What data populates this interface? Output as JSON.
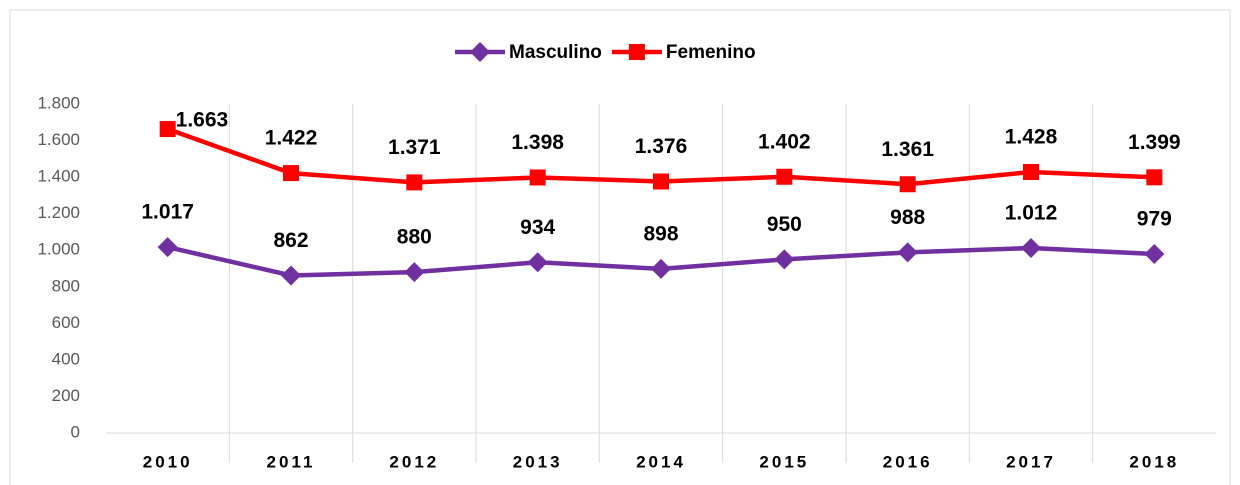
{
  "chart_data": {
    "type": "line",
    "categories": [
      "2010",
      "2011",
      "2012",
      "2013",
      "2014",
      "2015",
      "2016",
      "2017",
      "2018"
    ],
    "series": [
      {
        "name": "Masculino",
        "color": "#7030a0",
        "marker": "diamond",
        "values": [
          1017,
          862,
          880,
          934,
          898,
          950,
          988,
          1012,
          979
        ],
        "value_labels": [
          "1.017",
          "862",
          "880",
          "934",
          "898",
          "950",
          "988",
          "1.012",
          "979"
        ]
      },
      {
        "name": "Femenino",
        "color": "#ff0000",
        "marker": "square",
        "values": [
          1663,
          1422,
          1371,
          1398,
          1376,
          1402,
          1361,
          1428,
          1399
        ],
        "value_labels": [
          "1.663",
          "1.422",
          "1.371",
          "1.398",
          "1.376",
          "1.402",
          "1.361",
          "1.428",
          "1.399"
        ]
      }
    ],
    "ylim": [
      0,
      1800
    ],
    "yticks": [
      0,
      200,
      400,
      600,
      800,
      {
        "value": 1000,
        "label": "1.000"
      },
      {
        "value": 1200,
        "label": "1.200"
      },
      {
        "value": 1400,
        "label": "1.400"
      },
      {
        "value": 1600,
        "label": "1.600"
      },
      {
        "value": 1800,
        "label": "1.800"
      }
    ],
    "grid": "x",
    "legend": "top"
  }
}
